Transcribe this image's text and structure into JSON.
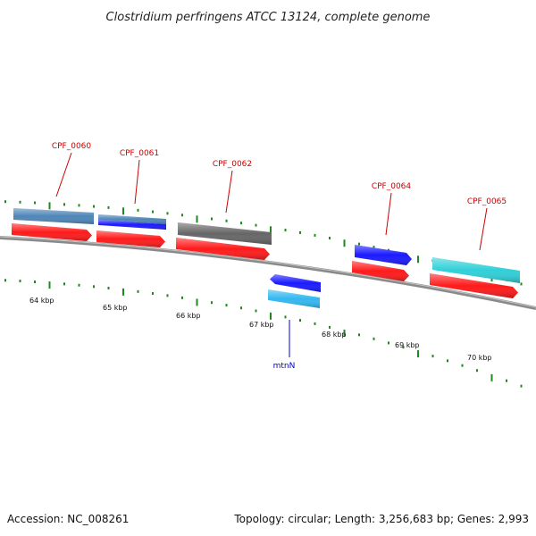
{
  "title": "Clostridium perfringens ATCC 13124, complete genome",
  "footer": {
    "accession": "Accession: NC_008261",
    "summary": "Topology: circular; Length: 3,256,683 bp; Genes: 2,993"
  },
  "colors": {
    "backbone": "#8a8a8a",
    "tick": "#1e8a1e",
    "label_forward": "#cc0000",
    "label_reverse": "#0000cc",
    "cds": "#ff1a1a",
    "steelblue": "#4f86b8",
    "blue": "#1a1aff",
    "gray": "#666666",
    "cyan": "#2fd0d8",
    "sky": "#33b8f0"
  },
  "kbp_labels": [
    "64 kbp",
    "65 kbp",
    "66 kbp",
    "67 kbp",
    "68 kbp",
    "69 kbp",
    "70 kbp"
  ],
  "genes": [
    {
      "label": "CPF_0060",
      "strand": "forward"
    },
    {
      "label": "CPF_0061",
      "strand": "forward"
    },
    {
      "label": "CPF_0062",
      "strand": "forward"
    },
    {
      "label": "CPF_0064",
      "strand": "forward"
    },
    {
      "label": "CPF_0065",
      "strand": "forward"
    },
    {
      "label": "mtnN",
      "strand": "reverse"
    }
  ]
}
